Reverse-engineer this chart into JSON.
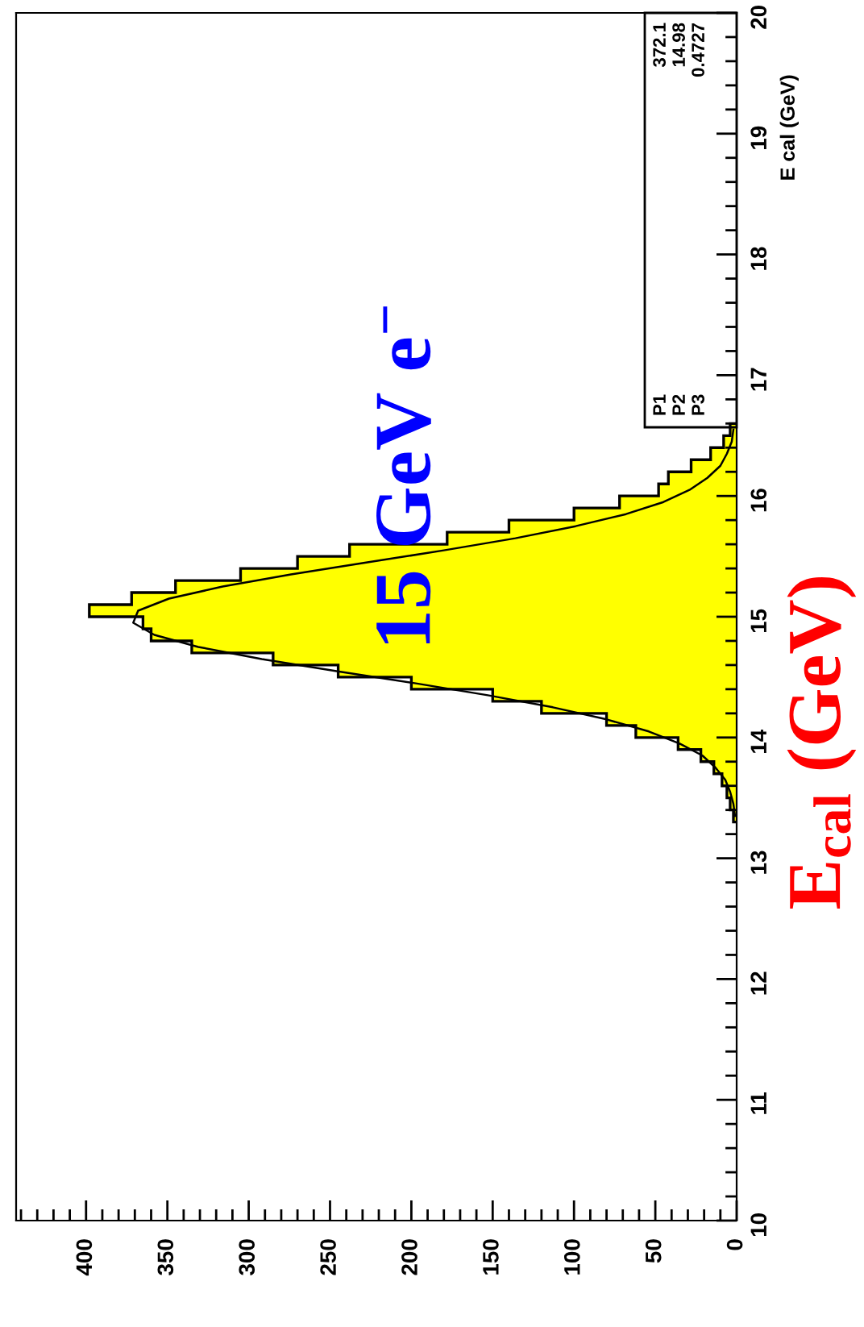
{
  "chart_data": {
    "type": "histogram",
    "orientation": "horizontal",
    "title": "15 GeV e$^{−}$",
    "ylabel": "E cal (GeV)",
    "annotations": [
      "E$_{cal}$ (GeV)",
      "P1",
      "372.1",
      "P2",
      "14.98",
      "P3",
      "0.4727"
    ],
    "xlim": [
      443,
      0
    ],
    "xticks": [
      0,
      50,
      100,
      150,
      200,
      250,
      300,
      350,
      400
    ],
    "ylim": [
      10,
      20
    ],
    "yticks": [
      10,
      11,
      12,
      13,
      14,
      15,
      16,
      17,
      18,
      19,
      20
    ],
    "grid": false,
    "series": [
      {
        "type": "histogram",
        "color": "#ffff00",
        "bins": [
          13.3,
          13.4,
          13.5,
          13.6,
          13.7,
          13.8,
          13.9,
          14.0,
          14.1,
          14.2,
          14.3,
          14.4,
          14.5,
          14.6,
          14.7,
          14.8,
          14.9,
          15.0,
          15.1,
          15.2,
          15.3,
          15.4,
          15.5,
          15.6,
          15.7,
          15.8,
          15.9,
          16.0,
          16.1,
          16.2,
          16.3,
          16.4,
          16.5,
          16.6
        ],
        "values": [
          2,
          4,
          6,
          9,
          14,
          22,
          36,
          62,
          80,
          120,
          150,
          200,
          245,
          285,
          335,
          360,
          365,
          398,
          372,
          345,
          305,
          270,
          238,
          178,
          140,
          100,
          72,
          48,
          42,
          28,
          16,
          8,
          4
        ]
      },
      {
        "type": "line",
        "color": "#000000",
        "x": [
          13.35,
          13.45,
          13.55,
          13.65,
          13.75,
          13.85,
          13.95,
          14.05,
          14.15,
          14.25,
          14.35,
          14.45,
          14.55,
          14.65,
          14.75,
          14.85,
          14.95,
          15.05,
          15.15,
          15.25,
          15.35,
          15.45,
          15.55,
          15.65,
          15.75,
          15.85,
          15.95,
          16.05,
          16.15,
          16.25,
          16.35,
          16.45,
          16.55
        ],
        "values": [
          1,
          2,
          4,
          7,
          13,
          21,
          35,
          54,
          80,
          113,
          153,
          198,
          246,
          292,
          331,
          358,
          371,
          368,
          349,
          316,
          274,
          227,
          180,
          136,
          99,
          68,
          45,
          29,
          18,
          10,
          6,
          3,
          2
        ]
      }
    ]
  }
}
